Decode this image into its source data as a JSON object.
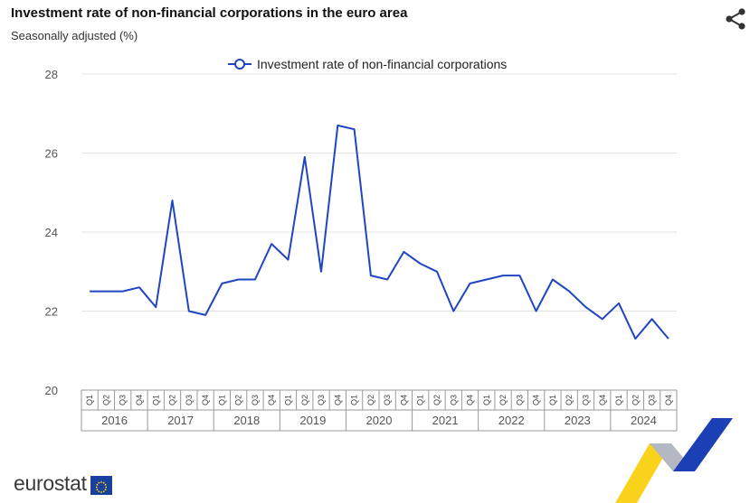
{
  "header": {
    "title": "Investment rate of non-financial corporations in the euro area",
    "subtitle": "Seasonally adjusted (%)"
  },
  "icons": {
    "share": "share-icon",
    "flag": "eu-flag-icon"
  },
  "logo": {
    "text": "eurostat"
  },
  "colors": {
    "series": "#1f45c2",
    "grid": "#e3e3e3",
    "axis": "#999999"
  },
  "chart_data": {
    "type": "line",
    "title": "Investment rate of non-financial corporations in the euro area",
    "subtitle": "Seasonally adjusted (%)",
    "xlabel": "",
    "ylabel": "",
    "ylim": [
      20,
      28
    ],
    "yticks": [
      20,
      22,
      24,
      26,
      28
    ],
    "grid": true,
    "legend_position": "top-center",
    "quarters": [
      "Q1",
      "Q2",
      "Q3",
      "Q4"
    ],
    "years": [
      "2016",
      "2017",
      "2018",
      "2019",
      "2020",
      "2021",
      "2022",
      "2023",
      "2024"
    ],
    "categories": [
      "2016Q1",
      "2016Q2",
      "2016Q3",
      "2016Q4",
      "2017Q1",
      "2017Q2",
      "2017Q3",
      "2017Q4",
      "2018Q1",
      "2018Q2",
      "2018Q3",
      "2018Q4",
      "2019Q1",
      "2019Q2",
      "2019Q3",
      "2019Q4",
      "2020Q1",
      "2020Q2",
      "2020Q3",
      "2020Q4",
      "2021Q1",
      "2021Q2",
      "2021Q3",
      "2021Q4",
      "2022Q1",
      "2022Q2",
      "2022Q3",
      "2022Q4",
      "2023Q1",
      "2023Q2",
      "2023Q3",
      "2023Q4",
      "2024Q1",
      "2024Q2",
      "2024Q3",
      "2024Q4"
    ],
    "series": [
      {
        "name": "Investment rate of non-financial corporations",
        "color": "#1f45c2",
        "values": [
          22.5,
          22.5,
          22.5,
          22.6,
          22.1,
          24.8,
          22.0,
          21.9,
          22.7,
          22.8,
          22.8,
          23.7,
          23.3,
          25.9,
          23.0,
          26.7,
          26.6,
          22.9,
          22.8,
          23.5,
          23.2,
          23.0,
          22.0,
          22.7,
          22.8,
          22.9,
          22.9,
          22.0,
          22.8,
          22.5,
          22.1,
          21.8,
          22.2,
          21.3,
          21.8,
          21.3
        ]
      }
    ]
  }
}
